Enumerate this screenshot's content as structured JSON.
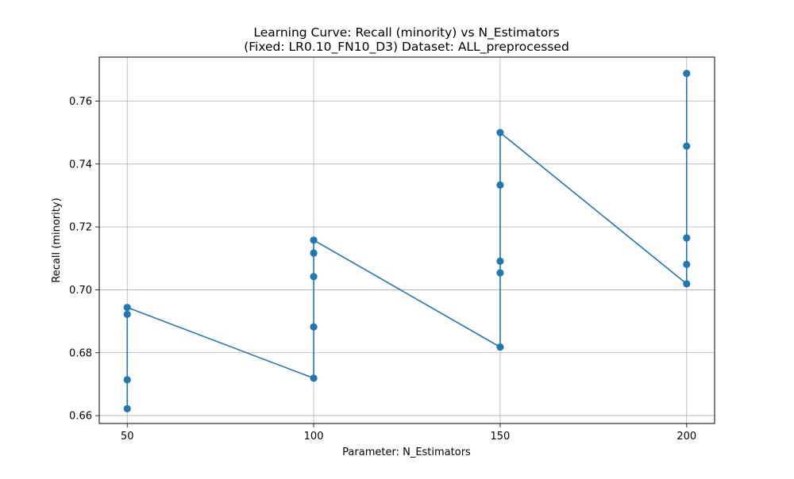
{
  "chart_data": {
    "type": "line",
    "title": "Learning Curve: Recall (minority) vs N_Estimators",
    "subtitle": "(Fixed: LR0.10_FN10_D3) Dataset: ALL_preprocessed",
    "xlabel": "Parameter: N_Estimators",
    "ylabel": "Recall (minority)",
    "xlim": [
      42.5,
      207.5
    ],
    "ylim": [
      0.6575,
      0.774
    ],
    "grid": true,
    "x_ticks": [
      50,
      100,
      150,
      200
    ],
    "x_tick_labels": [
      "50",
      "100",
      "150",
      "200"
    ],
    "y_ticks": [
      0.66,
      0.68,
      0.7,
      0.72,
      0.74,
      0.76
    ],
    "y_tick_labels": [
      "0.66",
      "0.68",
      "0.70",
      "0.72",
      "0.74",
      "0.76"
    ],
    "series": [
      {
        "name": "Recall (minority)",
        "color": "#1f77b4",
        "marker": "circle",
        "x": [
          50,
          50,
          50,
          50,
          100,
          100,
          100,
          100,
          100,
          150,
          150,
          150,
          150,
          150,
          200,
          200,
          200,
          200,
          200
        ],
        "y": [
          0.6622,
          0.6714,
          0.6922,
          0.6944,
          0.6719,
          0.6882,
          0.7042,
          0.7117,
          0.7158,
          0.6818,
          0.7054,
          0.7091,
          0.7333,
          0.75,
          0.7019,
          0.7081,
          0.7165,
          0.7457,
          0.7688
        ]
      }
    ]
  }
}
